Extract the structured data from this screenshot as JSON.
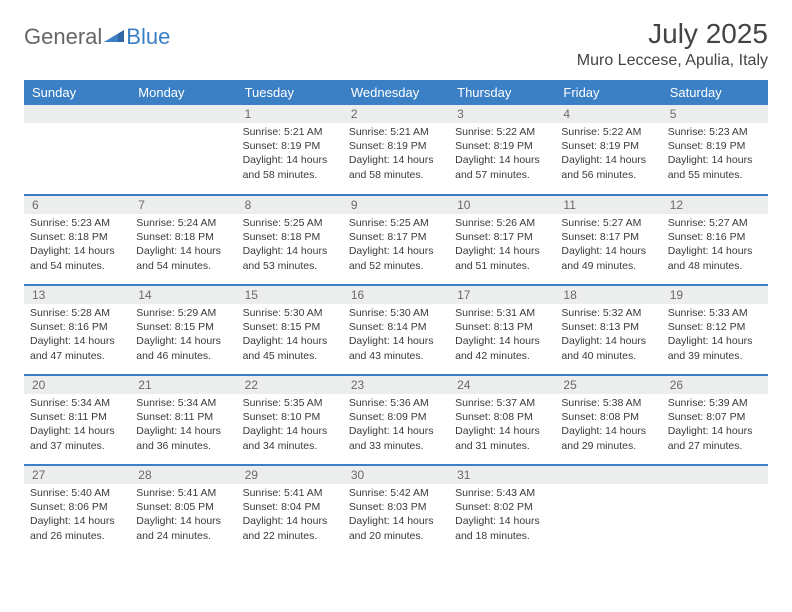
{
  "brand": {
    "part1": "General",
    "part2": "Blue"
  },
  "title": "July 2025",
  "location": "Muro Leccese, Apulia, Italy",
  "colors": {
    "accent": "#3b7fc4",
    "header_text": "#ffffff",
    "daynum_bg": "#eceded",
    "daynum_text": "#6a6a6a",
    "body_text": "#3a3a3a",
    "page_bg": "#ffffff"
  },
  "weekdays": [
    "Sunday",
    "Monday",
    "Tuesday",
    "Wednesday",
    "Thursday",
    "Friday",
    "Saturday"
  ],
  "weeks": [
    [
      {
        "n": "",
        "sr": "",
        "ss": "",
        "dl": ""
      },
      {
        "n": "",
        "sr": "",
        "ss": "",
        "dl": ""
      },
      {
        "n": "1",
        "sr": "Sunrise: 5:21 AM",
        "ss": "Sunset: 8:19 PM",
        "dl": "Daylight: 14 hours and 58 minutes."
      },
      {
        "n": "2",
        "sr": "Sunrise: 5:21 AM",
        "ss": "Sunset: 8:19 PM",
        "dl": "Daylight: 14 hours and 58 minutes."
      },
      {
        "n": "3",
        "sr": "Sunrise: 5:22 AM",
        "ss": "Sunset: 8:19 PM",
        "dl": "Daylight: 14 hours and 57 minutes."
      },
      {
        "n": "4",
        "sr": "Sunrise: 5:22 AM",
        "ss": "Sunset: 8:19 PM",
        "dl": "Daylight: 14 hours and 56 minutes."
      },
      {
        "n": "5",
        "sr": "Sunrise: 5:23 AM",
        "ss": "Sunset: 8:19 PM",
        "dl": "Daylight: 14 hours and 55 minutes."
      }
    ],
    [
      {
        "n": "6",
        "sr": "Sunrise: 5:23 AM",
        "ss": "Sunset: 8:18 PM",
        "dl": "Daylight: 14 hours and 54 minutes."
      },
      {
        "n": "7",
        "sr": "Sunrise: 5:24 AM",
        "ss": "Sunset: 8:18 PM",
        "dl": "Daylight: 14 hours and 54 minutes."
      },
      {
        "n": "8",
        "sr": "Sunrise: 5:25 AM",
        "ss": "Sunset: 8:18 PM",
        "dl": "Daylight: 14 hours and 53 minutes."
      },
      {
        "n": "9",
        "sr": "Sunrise: 5:25 AM",
        "ss": "Sunset: 8:17 PM",
        "dl": "Daylight: 14 hours and 52 minutes."
      },
      {
        "n": "10",
        "sr": "Sunrise: 5:26 AM",
        "ss": "Sunset: 8:17 PM",
        "dl": "Daylight: 14 hours and 51 minutes."
      },
      {
        "n": "11",
        "sr": "Sunrise: 5:27 AM",
        "ss": "Sunset: 8:17 PM",
        "dl": "Daylight: 14 hours and 49 minutes."
      },
      {
        "n": "12",
        "sr": "Sunrise: 5:27 AM",
        "ss": "Sunset: 8:16 PM",
        "dl": "Daylight: 14 hours and 48 minutes."
      }
    ],
    [
      {
        "n": "13",
        "sr": "Sunrise: 5:28 AM",
        "ss": "Sunset: 8:16 PM",
        "dl": "Daylight: 14 hours and 47 minutes."
      },
      {
        "n": "14",
        "sr": "Sunrise: 5:29 AM",
        "ss": "Sunset: 8:15 PM",
        "dl": "Daylight: 14 hours and 46 minutes."
      },
      {
        "n": "15",
        "sr": "Sunrise: 5:30 AM",
        "ss": "Sunset: 8:15 PM",
        "dl": "Daylight: 14 hours and 45 minutes."
      },
      {
        "n": "16",
        "sr": "Sunrise: 5:30 AM",
        "ss": "Sunset: 8:14 PM",
        "dl": "Daylight: 14 hours and 43 minutes."
      },
      {
        "n": "17",
        "sr": "Sunrise: 5:31 AM",
        "ss": "Sunset: 8:13 PM",
        "dl": "Daylight: 14 hours and 42 minutes."
      },
      {
        "n": "18",
        "sr": "Sunrise: 5:32 AM",
        "ss": "Sunset: 8:13 PM",
        "dl": "Daylight: 14 hours and 40 minutes."
      },
      {
        "n": "19",
        "sr": "Sunrise: 5:33 AM",
        "ss": "Sunset: 8:12 PM",
        "dl": "Daylight: 14 hours and 39 minutes."
      }
    ],
    [
      {
        "n": "20",
        "sr": "Sunrise: 5:34 AM",
        "ss": "Sunset: 8:11 PM",
        "dl": "Daylight: 14 hours and 37 minutes."
      },
      {
        "n": "21",
        "sr": "Sunrise: 5:34 AM",
        "ss": "Sunset: 8:11 PM",
        "dl": "Daylight: 14 hours and 36 minutes."
      },
      {
        "n": "22",
        "sr": "Sunrise: 5:35 AM",
        "ss": "Sunset: 8:10 PM",
        "dl": "Daylight: 14 hours and 34 minutes."
      },
      {
        "n": "23",
        "sr": "Sunrise: 5:36 AM",
        "ss": "Sunset: 8:09 PM",
        "dl": "Daylight: 14 hours and 33 minutes."
      },
      {
        "n": "24",
        "sr": "Sunrise: 5:37 AM",
        "ss": "Sunset: 8:08 PM",
        "dl": "Daylight: 14 hours and 31 minutes."
      },
      {
        "n": "25",
        "sr": "Sunrise: 5:38 AM",
        "ss": "Sunset: 8:08 PM",
        "dl": "Daylight: 14 hours and 29 minutes."
      },
      {
        "n": "26",
        "sr": "Sunrise: 5:39 AM",
        "ss": "Sunset: 8:07 PM",
        "dl": "Daylight: 14 hours and 27 minutes."
      }
    ],
    [
      {
        "n": "27",
        "sr": "Sunrise: 5:40 AM",
        "ss": "Sunset: 8:06 PM",
        "dl": "Daylight: 14 hours and 26 minutes."
      },
      {
        "n": "28",
        "sr": "Sunrise: 5:41 AM",
        "ss": "Sunset: 8:05 PM",
        "dl": "Daylight: 14 hours and 24 minutes."
      },
      {
        "n": "29",
        "sr": "Sunrise: 5:41 AM",
        "ss": "Sunset: 8:04 PM",
        "dl": "Daylight: 14 hours and 22 minutes."
      },
      {
        "n": "30",
        "sr": "Sunrise: 5:42 AM",
        "ss": "Sunset: 8:03 PM",
        "dl": "Daylight: 14 hours and 20 minutes."
      },
      {
        "n": "31",
        "sr": "Sunrise: 5:43 AM",
        "ss": "Sunset: 8:02 PM",
        "dl": "Daylight: 14 hours and 18 minutes."
      },
      {
        "n": "",
        "sr": "",
        "ss": "",
        "dl": ""
      },
      {
        "n": "",
        "sr": "",
        "ss": "",
        "dl": ""
      }
    ]
  ]
}
